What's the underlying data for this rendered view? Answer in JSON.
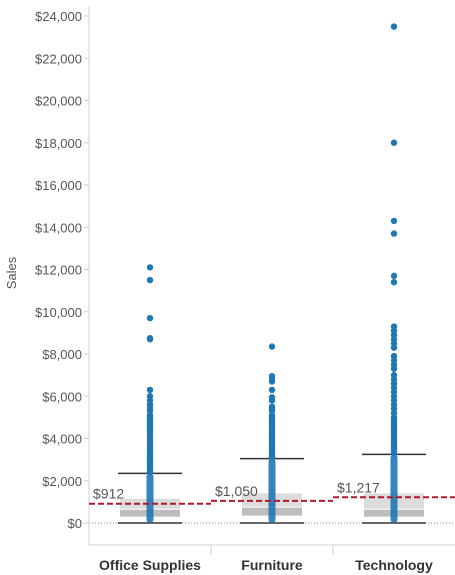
{
  "chart_data": {
    "type": "box",
    "ylabel": "Sales",
    "ylim": [
      -1300,
      24600
    ],
    "y_ticks": [
      {
        "value": 0,
        "label": "$0"
      },
      {
        "value": 2000,
        "label": "$2,000"
      },
      {
        "value": 4000,
        "label": "$4,000"
      },
      {
        "value": 6000,
        "label": "$6,000"
      },
      {
        "value": 8000,
        "label": "$8,000"
      },
      {
        "value": 10000,
        "label": "$10,000"
      },
      {
        "value": 12000,
        "label": "$12,000"
      },
      {
        "value": 14000,
        "label": "$14,000"
      },
      {
        "value": 16000,
        "label": "$16,000"
      },
      {
        "value": 18000,
        "label": "$18,000"
      },
      {
        "value": 20000,
        "label": "$20,000"
      },
      {
        "value": 22000,
        "label": "$22,000"
      },
      {
        "value": 24000,
        "label": "$24,000"
      }
    ],
    "categories": [
      "Office Supplies",
      "Furniture",
      "Technology"
    ],
    "colors": {
      "points": "#1f77b4",
      "reference_line": "#b2182b",
      "box_light": "#dcdcdc",
      "box_dark": "#bdbdbd",
      "whisker": "#333333",
      "zero_line": "#888888"
    },
    "boxes": [
      {
        "category": "Office Supplies",
        "whisker_low": 0,
        "q1": 300,
        "median": 650,
        "q3": 1150,
        "whisker_high": 2350
      },
      {
        "category": "Furniture",
        "whisker_low": 0,
        "q1": 350,
        "median": 750,
        "q3": 1400,
        "whisker_high": 3050
      },
      {
        "category": "Technology",
        "whisker_low": 0,
        "q1": 300,
        "median": 650,
        "q3": 1400,
        "whisker_high": 3250
      }
    ],
    "reference_lines": [
      {
        "category": "Office Supplies",
        "value": 912,
        "label": "$912"
      },
      {
        "category": "Furniture",
        "value": 1050,
        "label": "$1,050"
      },
      {
        "category": "Technology",
        "value": 1217,
        "label": "$1,217"
      }
    ],
    "outliers": [
      {
        "category": "Office Supplies",
        "values": [
          12100,
          11500,
          9700,
          8750,
          8700,
          6300,
          6000,
          5800,
          5600,
          5450,
          5300,
          5100,
          5000,
          4900,
          4800,
          4700,
          4600,
          4500,
          4400,
          4300,
          4150,
          4000,
          3850,
          3700,
          3600,
          3500,
          3400,
          3300,
          3200,
          3100,
          3000,
          2900,
          2800,
          2700,
          2600,
          2500,
          2400
        ]
      },
      {
        "category": "Furniture",
        "values": [
          8350,
          6950,
          6850,
          6700,
          6300,
          5950,
          5800,
          5500,
          5400,
          5300,
          5100,
          5000,
          4900,
          4800,
          4700,
          4600,
          4500,
          4400,
          4300,
          4200,
          4100,
          4000,
          3900,
          3800,
          3700,
          3600,
          3500,
          3400,
          3300,
          3200,
          3100
        ]
      },
      {
        "category": "Technology",
        "values": [
          23500,
          18000,
          14300,
          13700,
          11700,
          11400,
          9300,
          9100,
          8900,
          8700,
          8500,
          8300,
          7900,
          7700,
          7500,
          7300,
          7000,
          6800,
          6600,
          6400,
          6200,
          6000,
          5800,
          5600,
          5400,
          5200,
          5000,
          4900,
          4800,
          4700,
          4600,
          4500,
          4400,
          4300,
          4200,
          4100,
          4000,
          3900,
          3800,
          3700,
          3600,
          3500,
          3400,
          3300
        ]
      }
    ]
  }
}
